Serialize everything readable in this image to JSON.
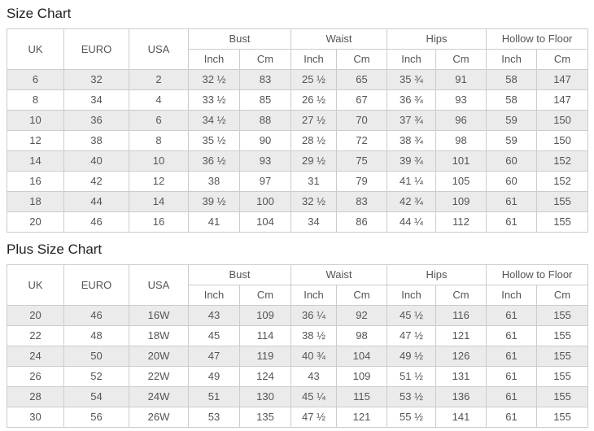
{
  "colors": {
    "stripe": "#ebebeb",
    "border": "#cccccc",
    "text": "#555555",
    "heading": "#222222",
    "background": "#ffffff"
  },
  "size_chart": {
    "title": "Size Chart",
    "columns": [
      "UK",
      "EURO",
      "USA"
    ],
    "groups": [
      {
        "label": "Bust"
      },
      {
        "label": "Waist"
      },
      {
        "label": "Hips"
      },
      {
        "label": "Hollow to Floor"
      }
    ],
    "subheaders": [
      "Inch",
      "Cm",
      "Inch",
      "Cm",
      "Inch",
      "Cm",
      "Inch",
      "Cm"
    ],
    "rows": [
      [
        "6",
        "32",
        "2",
        "32 ½",
        "83",
        "25 ½",
        "65",
        "35 ¾",
        "91",
        "58",
        "147"
      ],
      [
        "8",
        "34",
        "4",
        "33 ½",
        "85",
        "26 ½",
        "67",
        "36 ¾",
        "93",
        "58",
        "147"
      ],
      [
        "10",
        "36",
        "6",
        "34 ½",
        "88",
        "27 ½",
        "70",
        "37 ¾",
        "96",
        "59",
        "150"
      ],
      [
        "12",
        "38",
        "8",
        "35 ½",
        "90",
        "28 ½",
        "72",
        "38 ¾",
        "98",
        "59",
        "150"
      ],
      [
        "14",
        "40",
        "10",
        "36 ½",
        "93",
        "29 ½",
        "75",
        "39 ¾",
        "101",
        "60",
        "152"
      ],
      [
        "16",
        "42",
        "12",
        "38",
        "97",
        "31",
        "79",
        "41 ¼",
        "105",
        "60",
        "152"
      ],
      [
        "18",
        "44",
        "14",
        "39 ½",
        "100",
        "32 ½",
        "83",
        "42 ¾",
        "109",
        "61",
        "155"
      ],
      [
        "20",
        "46",
        "16",
        "41",
        "104",
        "34",
        "86",
        "44 ¼",
        "112",
        "61",
        "155"
      ]
    ]
  },
  "plus_size_chart": {
    "title": "Plus Size Chart",
    "columns": [
      "UK",
      "EURO",
      "USA"
    ],
    "groups": [
      {
        "label": "Bust"
      },
      {
        "label": "Waist"
      },
      {
        "label": "Hips"
      },
      {
        "label": "Hollow to Floor"
      }
    ],
    "subheaders": [
      "Inch",
      "Cm",
      "Inch",
      "Cm",
      "Inch",
      "Cm",
      "Inch",
      "Cm"
    ],
    "rows": [
      [
        "20",
        "46",
        "16W",
        "43",
        "109",
        "36 ¼",
        "92",
        "45 ½",
        "116",
        "61",
        "155"
      ],
      [
        "22",
        "48",
        "18W",
        "45",
        "114",
        "38 ½",
        "98",
        "47 ½",
        "121",
        "61",
        "155"
      ],
      [
        "24",
        "50",
        "20W",
        "47",
        "119",
        "40 ¾",
        "104",
        "49 ½",
        "126",
        "61",
        "155"
      ],
      [
        "26",
        "52",
        "22W",
        "49",
        "124",
        "43",
        "109",
        "51 ½",
        "131",
        "61",
        "155"
      ],
      [
        "28",
        "54",
        "24W",
        "51",
        "130",
        "45 ¼",
        "115",
        "53 ½",
        "136",
        "61",
        "155"
      ],
      [
        "30",
        "56",
        "26W",
        "53",
        "135",
        "47 ½",
        "121",
        "55 ½",
        "141",
        "61",
        "155"
      ]
    ]
  }
}
